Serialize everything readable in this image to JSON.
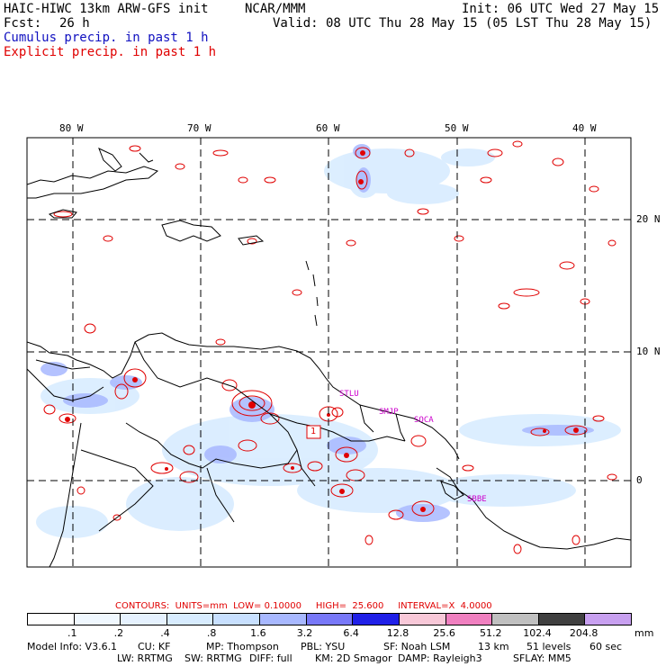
{
  "header": {
    "model": "HAIC-HIWC 13km ARW-GFS init",
    "org": "NCAR/MMM",
    "init": "Init: 06 UTC Wed 27 May 15",
    "fcst_label": "Fcst:",
    "fcst_value": "26 h",
    "valid": "Valid: 08 UTC Thu 28 May 15 (05 LST Thu 28 May 15)",
    "cumulus": "Cumulus precip. in past 1 h",
    "explicit": "Explicit precip. in past 1 h"
  },
  "colors": {
    "cumulus": "#1010c0",
    "explicit": "#e00000",
    "contour_text": "#e00000",
    "station": "#cc00cc"
  },
  "map": {
    "lon_labels": [
      "80 W",
      "70 W",
      "60 W",
      "50 W",
      "40 W"
    ],
    "lat_labels": [
      "20 N",
      "10 N",
      "0"
    ],
    "stations": [
      "STLU",
      "SMJP",
      "SOCA",
      "SBBE"
    ],
    "max_label": "1"
  },
  "contours": {
    "text": "CONTOURS:  UNITS=mm  LOW= 0.10000     HIGH=  25.600     INTERVAL=X  4.0000"
  },
  "colorbar": {
    "labels": [
      ".1",
      ".2",
      ".4",
      ".8",
      "1.6",
      "3.2",
      "6.4",
      "12.8",
      "25.6",
      "51.2",
      "102.4",
      "204.8"
    ],
    "unit": "mm",
    "colors": [
      "#ffffff",
      "#f0f8ff",
      "#e6f2ff",
      "#d8ecff",
      "#c8e0ff",
      "#a8b8ff",
      "#7878f8",
      "#2020e8",
      "#f8c8d8",
      "#f080c0",
      "#c0c0c0",
      "#404040",
      "#c8a0f0"
    ]
  },
  "footer": {
    "line1": [
      "Model Info: V3.6.1",
      "CU: KF",
      "MP: Thompson",
      "PBL: YSU",
      "SF: Noah LSM",
      "13 km",
      "51 levels",
      "60 sec"
    ],
    "line2": [
      "LW: RRTMG",
      "SW: RRTMG",
      "DIFF: full",
      "KM: 2D Smagor",
      "DAMP: Rayleigh3",
      "SFLAY: MM5"
    ]
  }
}
